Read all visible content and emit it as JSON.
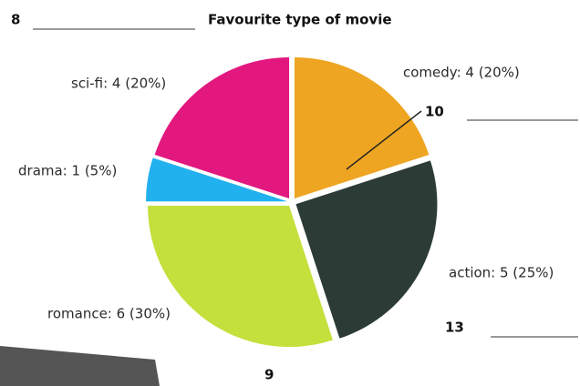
{
  "chart_data": {
    "type": "pie",
    "title": "Favourite type of movie",
    "categories": [
      "comedy",
      "action",
      "romance",
      "drama",
      "sci-fi"
    ],
    "values": [
      4,
      5,
      6,
      1,
      4
    ],
    "value_labels": [
      "comedy: 4 (20%)",
      "action: 5 (25%)",
      "romance: 6 (30%)",
      "drama: 1 (5%)",
      "sci-fi: 4 (20%)"
    ],
    "colors": [
      "#eea522",
      "#2c3b36",
      "#c4e03c",
      "#22b1ef",
      "#e2187f"
    ],
    "annotations": [
      "8",
      "10",
      "13",
      "9"
    ]
  }
}
